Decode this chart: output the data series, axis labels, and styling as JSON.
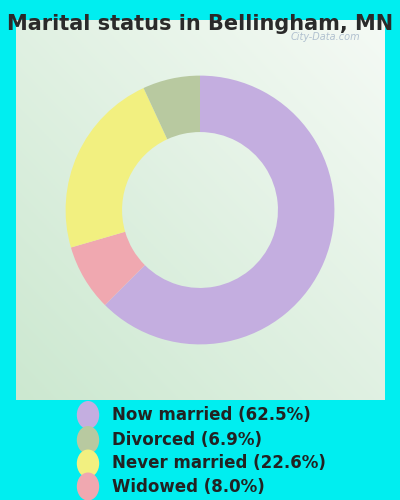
{
  "title": "Marital status in Bellingham, MN",
  "slices": [
    62.5,
    8.0,
    22.6,
    6.9
  ],
  "slice_order_colors": [
    "#c4aee0",
    "#f0a8b0",
    "#f2f080",
    "#b8c9a0"
  ],
  "legend_colors": [
    "#c4aee0",
    "#b8c9a0",
    "#f2f080",
    "#f0a8b0"
  ],
  "labels": [
    "Now married (62.5%)",
    "Divorced (6.9%)",
    "Never married (22.6%)",
    "Widowed (8.0%)"
  ],
  "title_fontsize": 15,
  "legend_fontsize": 12,
  "watermark": "City-Data.com",
  "start_angle": 90,
  "donut_width": 0.42,
  "cyan_bg": "#00eef0",
  "chart_bg_tl": "#e8f5f2",
  "chart_bg_br": "#ddeedd"
}
